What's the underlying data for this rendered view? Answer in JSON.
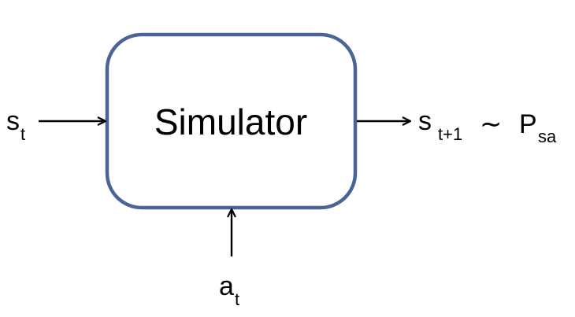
{
  "block": {
    "label": "Simulator"
  },
  "input_state": {
    "symbol": "s",
    "subscript": "t"
  },
  "input_action": {
    "symbol": "a",
    "subscript": "t"
  },
  "output": {
    "symbol": "s",
    "subscript": "t+1",
    "relation": "∼",
    "distribution_symbol": "P",
    "distribution_subscript": "sa"
  },
  "colors": {
    "box_border": "#4a6496",
    "arrow": "#000000",
    "text": "#000000"
  }
}
